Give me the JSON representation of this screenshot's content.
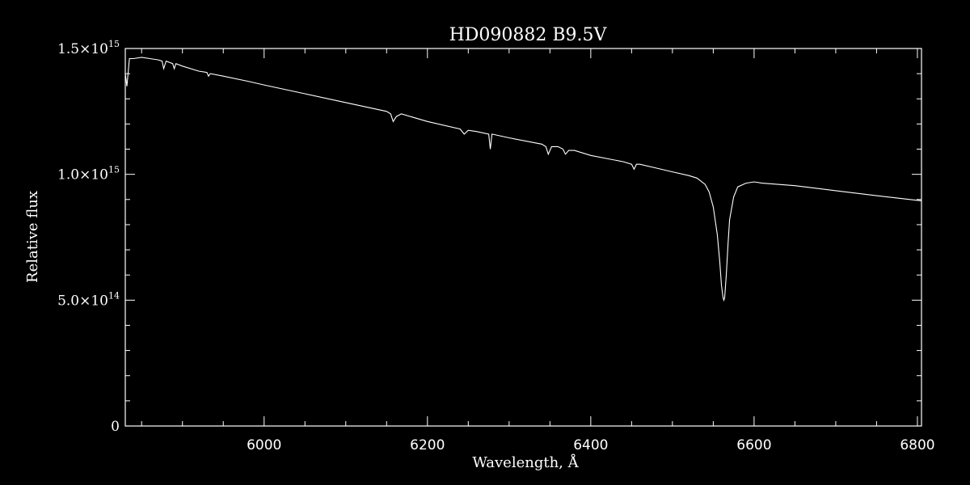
{
  "chart_data": {
    "type": "line",
    "title": "HD090882   B9.5V",
    "xlabel": "Wavelength, Å",
    "ylabel": "Relative flux",
    "xlim": [
      5830,
      6805
    ],
    "ylim": [
      0,
      1500000000000000.0
    ],
    "x_ticks": [
      6000,
      6200,
      6400,
      6600,
      6800
    ],
    "x_tick_labels": [
      "6000",
      "6200",
      "6400",
      "6600",
      "6800"
    ],
    "y_ticks": [
      {
        "value": 0,
        "mantissa": "0",
        "exponent": ""
      },
      {
        "value": 500000000000000.0,
        "mantissa": "5.0×10",
        "exponent": "14"
      },
      {
        "value": 1000000000000000.0,
        "mantissa": "1.0×10",
        "exponent": "15"
      },
      {
        "value": 1500000000000000.0,
        "mantissa": "1.5×10",
        "exponent": "15"
      }
    ],
    "grid": false,
    "line_color": "#ffffff",
    "background": "#000000",
    "series": [
      {
        "x": [
          5830,
          5832,
          5835,
          5840,
          5850,
          5860,
          5870,
          5875,
          5877,
          5880,
          5888,
          5890,
          5892,
          5900,
          5920,
          5930,
          5932,
          5934,
          5950,
          5980,
          6000,
          6050,
          6100,
          6150,
          6155,
          6158,
          6162,
          6168,
          6200,
          6240,
          6245,
          6250,
          6260,
          6275,
          6277,
          6279,
          6300,
          6340,
          6345,
          6348,
          6352,
          6360,
          6366,
          6369,
          6373,
          6380,
          6400,
          6440,
          6450,
          6453,
          6456,
          6460,
          6480,
          6500,
          6520,
          6530,
          6540,
          6545,
          6550,
          6555,
          6558,
          6560,
          6562,
          6563,
          6564,
          6566,
          6568,
          6570,
          6575,
          6580,
          6590,
          6600,
          6610,
          6650,
          6700,
          6750,
          6805
        ],
        "y": [
          1400000000000000.0,
          1350000000000000.0,
          1460000000000000.0,
          1460000000000000.0,
          1465000000000000.0,
          1460000000000000.0,
          1455000000000000.0,
          1450000000000000.0,
          1420000000000000.0,
          1450000000000000.0,
          1440000000000000.0,
          1420000000000000.0,
          1440000000000000.0,
          1430000000000000.0,
          1410000000000000.0,
          1405000000000000.0,
          1390000000000000.0,
          1400000000000000.0,
          1390000000000000.0,
          1370000000000000.0,
          1355000000000000.0,
          1320000000000000.0,
          1285000000000000.0,
          1250000000000000.0,
          1240000000000000.0,
          1210000000000000.0,
          1230000000000000.0,
          1240000000000000.0,
          1210000000000000.0,
          1180000000000000.0,
          1160000000000000.0,
          1175000000000000.0,
          1170000000000000.0,
          1160000000000000.0,
          1100000000000000.0,
          1160000000000000.0,
          1145000000000000.0,
          1120000000000000.0,
          1110000000000000.0,
          1080000000000000.0,
          1110000000000000.0,
          1110000000000000.0,
          1100000000000000.0,
          1080000000000000.0,
          1095000000000000.0,
          1095000000000000.0,
          1075000000000000.0,
          1050000000000000.0,
          1040000000000000.0,
          1020000000000000.0,
          1040000000000000.0,
          1040000000000000.0,
          1025000000000000.0,
          1010000000000000.0,
          995000000000000.0,
          985000000000000.0,
          960000000000000.0,
          930000000000000.0,
          870000000000000.0,
          760000000000000.0,
          650000000000000.0,
          560000000000000.0,
          510000000000000.0,
          500000000000000.0,
          510000000000000.0,
          600000000000000.0,
          720000000000000.0,
          820000000000000.0,
          910000000000000.0,
          950000000000000.0,
          965000000000000.0,
          970000000000000.0,
          965000000000000.0,
          955000000000000.0,
          935000000000000.0,
          915000000000000.0,
          895000000000000.0
        ]
      }
    ]
  }
}
